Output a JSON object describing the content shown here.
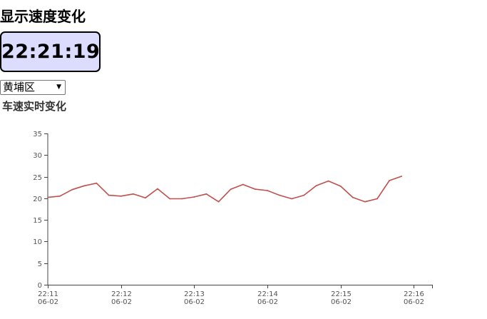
{
  "page": {
    "title": "显示速度变化",
    "clock": "22:21:19",
    "district_select": {
      "selected": "黄埔区"
    }
  },
  "chart_data": {
    "type": "line",
    "title": "车速实时变化",
    "xlabel": "",
    "ylabel": "",
    "ylim": [
      0,
      35
    ],
    "yticks": [
      0,
      5,
      10,
      15,
      20,
      25,
      30,
      35
    ],
    "xlim": [
      "22:11:00",
      "22:16:15"
    ],
    "xticks": [
      {
        "time": "22:11:00",
        "label": [
          "22:11",
          "06-02"
        ]
      },
      {
        "time": "22:12:00",
        "label": [
          "22:12",
          "06-02"
        ]
      },
      {
        "time": "22:13:00",
        "label": [
          "22:13",
          "06-02"
        ]
      },
      {
        "time": "22:14:00",
        "label": [
          "22:14",
          "06-02"
        ]
      },
      {
        "time": "22:15:00",
        "label": [
          "22:15",
          "06-02"
        ]
      },
      {
        "time": "22:16:00",
        "label": [
          "22:16",
          "06-02"
        ]
      }
    ],
    "series": [
      {
        "color": "#c0504d",
        "points": [
          [
            "22:11:00",
            20.2
          ],
          [
            "22:11:10",
            20.5
          ],
          [
            "22:11:20",
            22.0
          ],
          [
            "22:11:30",
            22.9
          ],
          [
            "22:11:40",
            23.5
          ],
          [
            "22:11:50",
            20.7
          ],
          [
            "22:12:00",
            20.5
          ],
          [
            "22:12:10",
            21.0
          ],
          [
            "22:12:20",
            20.1
          ],
          [
            "22:12:30",
            22.2
          ],
          [
            "22:12:40",
            19.9
          ],
          [
            "22:12:50",
            19.9
          ],
          [
            "22:13:00",
            20.3
          ],
          [
            "22:13:10",
            21.0
          ],
          [
            "22:13:20",
            19.2
          ],
          [
            "22:13:30",
            22.1
          ],
          [
            "22:13:40",
            23.2
          ],
          [
            "22:13:50",
            22.1
          ],
          [
            "22:14:00",
            21.8
          ],
          [
            "22:14:10",
            20.7
          ],
          [
            "22:14:20",
            19.9
          ],
          [
            "22:14:30",
            20.7
          ],
          [
            "22:14:40",
            22.9
          ],
          [
            "22:14:50",
            24.0
          ],
          [
            "22:15:00",
            22.8
          ],
          [
            "22:15:10",
            20.2
          ],
          [
            "22:15:20",
            19.2
          ],
          [
            "22:15:30",
            19.9
          ],
          [
            "22:15:40",
            24.1
          ],
          [
            "22:15:50",
            25.1
          ]
        ]
      }
    ]
  }
}
